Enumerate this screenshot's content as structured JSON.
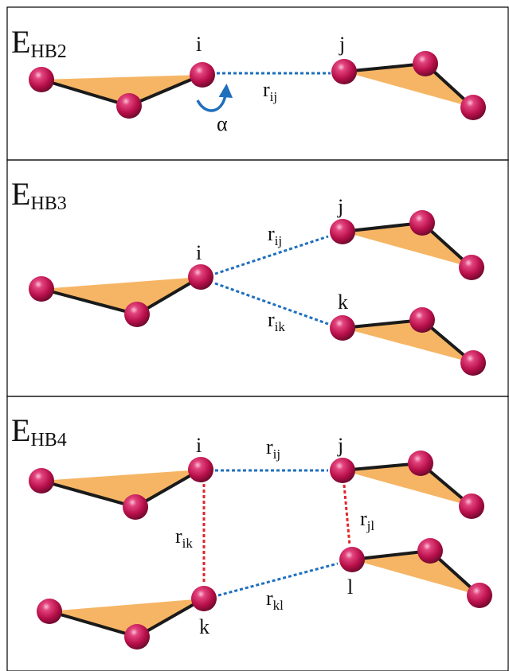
{
  "panels": [
    {
      "id": "hb2",
      "title_main": "E",
      "title_sub": "HB2",
      "atom_labels": [
        "i",
        "j"
      ],
      "distance_labels": [
        {
          "main": "r",
          "sub": "ij"
        }
      ],
      "angle_label": "α"
    },
    {
      "id": "hb3",
      "title_main": "E",
      "title_sub": "HB3",
      "atom_labels": [
        "i",
        "j",
        "k"
      ],
      "distance_labels": [
        {
          "main": "r",
          "sub": "ij"
        },
        {
          "main": "r",
          "sub": "ik"
        }
      ]
    },
    {
      "id": "hb4",
      "title_main": "E",
      "title_sub": "HB4",
      "atom_labels": [
        "i",
        "j",
        "k",
        "l"
      ],
      "distance_labels": [
        {
          "main": "r",
          "sub": "ij"
        },
        {
          "main": "r",
          "sub": "ik"
        },
        {
          "main": "r",
          "sub": "jl"
        },
        {
          "main": "r",
          "sub": "kl"
        }
      ]
    }
  ],
  "colors": {
    "atom": "#c0134f",
    "atom_highlight": "#f0a6c3",
    "triangle_fill": "#f6b565",
    "backbone": "#1a1a1a",
    "hbond_line": "#1f6fbd",
    "pair_line": "#e3242b",
    "angle_arrow": "#1f6fbd"
  }
}
